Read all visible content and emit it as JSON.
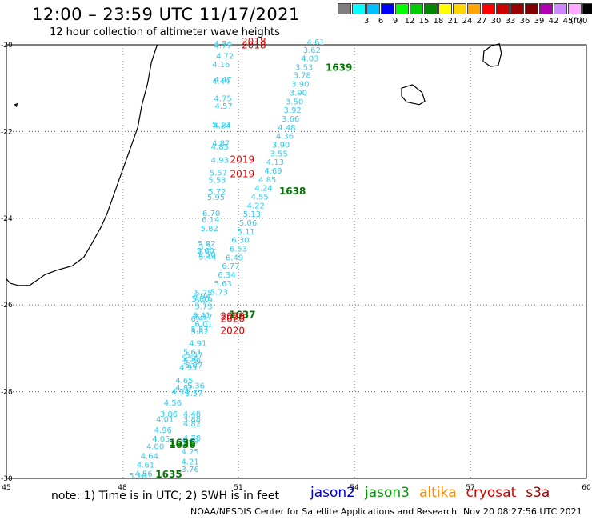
{
  "header": {
    "title": "12:00 – 23:59 UTC 11/17/2021",
    "subtitle": "12 hour collection of altimeter wave heights"
  },
  "color_scale": {
    "unit": "(ft)",
    "bins": [
      {
        "label": "",
        "color": "#7f7f7f"
      },
      {
        "label": "3",
        "color": "#00ffff"
      },
      {
        "label": "6",
        "color": "#00bfff"
      },
      {
        "label": "9",
        "color": "#0000ff"
      },
      {
        "label": "12",
        "color": "#00ff00"
      },
      {
        "label": "15",
        "color": "#00cc00"
      },
      {
        "label": "18",
        "color": "#008800"
      },
      {
        "label": "21",
        "color": "#ffff00"
      },
      {
        "label": "24",
        "color": "#ffd700"
      },
      {
        "label": "27",
        "color": "#ffa500"
      },
      {
        "label": "30",
        "color": "#ff0000"
      },
      {
        "label": "33",
        "color": "#cc0000"
      },
      {
        "label": "36",
        "color": "#990000"
      },
      {
        "label": "39",
        "color": "#800000"
      },
      {
        "label": "42",
        "color": "#b000b0"
      },
      {
        "label": "45",
        "color": "#cc88ff"
      },
      {
        "label": "70",
        "color": "#ffaaff"
      },
      {
        "label": "",
        "color": "#000000"
      }
    ]
  },
  "map": {
    "lon_range": [
      45,
      60
    ],
    "lat_range": [
      -30,
      -20
    ],
    "lon_ticks": [
      {
        "v": 45,
        "t": "45"
      },
      {
        "v": 48,
        "t": "48"
      },
      {
        "v": 51,
        "t": "51"
      },
      {
        "v": 54,
        "t": "54"
      },
      {
        "v": 57,
        "t": "57"
      },
      {
        "v": 60,
        "t": "60"
      }
    ],
    "lat_ticks": [
      {
        "v": -20,
        "t": "-20"
      },
      {
        "v": -22,
        "t": "-22"
      },
      {
        "v": -24,
        "t": "-24"
      },
      {
        "v": -26,
        "t": "-26"
      },
      {
        "v": -28,
        "t": "-28"
      },
      {
        "v": -30,
        "t": "-30"
      }
    ],
    "grid": true,
    "swh_color": "#33ccee",
    "pass_color_green": "#007700",
    "pass_color_red": "#dd0000",
    "coastline_madagascar": [
      [
        48.9,
        -20
      ],
      [
        48.75,
        -20.4
      ],
      [
        48.65,
        -20.9
      ],
      [
        48.5,
        -21.4
      ],
      [
        48.4,
        -21.9
      ],
      [
        48.2,
        -22.4
      ],
      [
        48.0,
        -22.9
      ],
      [
        47.8,
        -23.4
      ],
      [
        47.6,
        -23.9
      ],
      [
        47.45,
        -24.2
      ],
      [
        47.2,
        -24.6
      ],
      [
        47.0,
        -24.9
      ],
      [
        46.7,
        -25.1
      ],
      [
        46.3,
        -25.2
      ],
      [
        46.0,
        -25.3
      ],
      [
        45.6,
        -25.55
      ],
      [
        45.3,
        -25.55
      ],
      [
        45.1,
        -25.5
      ],
      [
        45.0,
        -25.4
      ]
    ],
    "reunion": [
      [
        55.22,
        -21.0
      ],
      [
        55.5,
        -20.92
      ],
      [
        55.75,
        -21.1
      ],
      [
        55.82,
        -21.3
      ],
      [
        55.68,
        -21.38
      ],
      [
        55.35,
        -21.32
      ],
      [
        55.22,
        -21.18
      ],
      [
        55.22,
        -21.0
      ]
    ],
    "mauritius": [
      [
        57.55,
        -20.02
      ],
      [
        57.75,
        -19.98
      ],
      [
        57.8,
        -20.2
      ],
      [
        57.72,
        -20.48
      ],
      [
        57.52,
        -20.5
      ],
      [
        57.33,
        -20.38
      ],
      [
        57.35,
        -20.15
      ],
      [
        57.55,
        -20.02
      ]
    ],
    "islet": [
      [
        45.22,
        -21.38
      ],
      [
        45.28,
        -21.36
      ],
      [
        45.26,
        -21.42
      ],
      [
        45.22,
        -21.38
      ]
    ]
  },
  "swh_readings": [
    {
      "lon": 50.6,
      "lat": -20.04,
      "v": "4.74"
    },
    {
      "lon": 50.6,
      "lat": -20.08,
      "v": "4.77"
    },
    {
      "lon": 50.65,
      "lat": -20.32,
      "v": "4.72"
    },
    {
      "lon": 50.55,
      "lat": -20.52,
      "v": "4.16"
    },
    {
      "lon": 50.6,
      "lat": -20.87,
      "v": "4.47"
    },
    {
      "lon": 50.55,
      "lat": -20.9,
      "v": "4.44"
    },
    {
      "lon": 50.6,
      "lat": -21.3,
      "v": "4.75"
    },
    {
      "lon": 50.62,
      "lat": -21.48,
      "v": "4.57"
    },
    {
      "lon": 50.55,
      "lat": -21.9,
      "v": "5.10"
    },
    {
      "lon": 50.58,
      "lat": -21.93,
      "v": "4.84"
    },
    {
      "lon": 50.55,
      "lat": -22.33,
      "v": "4.87"
    },
    {
      "lon": 50.52,
      "lat": -22.42,
      "v": "4.85"
    },
    {
      "lon": 50.52,
      "lat": -22.72,
      "v": "4.93"
    },
    {
      "lon": 50.48,
      "lat": -23.02,
      "v": "5.57"
    },
    {
      "lon": 50.45,
      "lat": -23.18,
      "v": "5.53"
    },
    {
      "lon": 50.45,
      "lat": -23.45,
      "v": "5.72"
    },
    {
      "lon": 50.42,
      "lat": -23.58,
      "v": "5.95"
    },
    {
      "lon": 50.3,
      "lat": -23.95,
      "v": "6.70"
    },
    {
      "lon": 50.28,
      "lat": -24.1,
      "v": "6.14"
    },
    {
      "lon": 50.25,
      "lat": -24.3,
      "v": "5.82"
    },
    {
      "lon": 50.18,
      "lat": -24.65,
      "v": "5.82"
    },
    {
      "lon": 50.2,
      "lat": -24.72,
      "v": "5.51"
    },
    {
      "lon": 50.15,
      "lat": -24.82,
      "v": "5.60"
    },
    {
      "lon": 50.18,
      "lat": -24.9,
      "v": "5.50"
    },
    {
      "lon": 50.2,
      "lat": -24.95,
      "v": "5.44"
    },
    {
      "lon": 50.1,
      "lat": -25.78,
      "v": "5.75"
    },
    {
      "lon": 50.05,
      "lat": -25.86,
      "v": "5.94"
    },
    {
      "lon": 50.02,
      "lat": -25.92,
      "v": "5.80"
    },
    {
      "lon": 50.1,
      "lat": -25.95,
      "v": "5.29"
    },
    {
      "lon": 50.1,
      "lat": -26.1,
      "v": "5.73"
    },
    {
      "lon": 50.05,
      "lat": -26.3,
      "v": "6.41"
    },
    {
      "lon": 50.1,
      "lat": -26.34,
      "v": "6.17"
    },
    {
      "lon": 50.0,
      "lat": -26.38,
      "v": "6.41"
    },
    {
      "lon": 50.1,
      "lat": -26.5,
      "v": "6.01"
    },
    {
      "lon": 50.0,
      "lat": -26.62,
      "v": "5.57"
    },
    {
      "lon": 50.0,
      "lat": -26.68,
      "v": "5.82"
    },
    {
      "lon": 49.95,
      "lat": -26.95,
      "v": "4.91"
    },
    {
      "lon": 49.8,
      "lat": -27.15,
      "v": "5.63"
    },
    {
      "lon": 49.85,
      "lat": -27.22,
      "v": "5.47"
    },
    {
      "lon": 49.75,
      "lat": -27.3,
      "v": "5.56"
    },
    {
      "lon": 49.8,
      "lat": -27.36,
      "v": "5.39"
    },
    {
      "lon": 49.85,
      "lat": -27.45,
      "v": "5.37"
    },
    {
      "lon": 49.7,
      "lat": -27.5,
      "v": "4.95"
    },
    {
      "lon": 49.6,
      "lat": -27.8,
      "v": "4.65"
    },
    {
      "lon": 49.9,
      "lat": -27.92,
      "v": "5.36"
    },
    {
      "lon": 49.6,
      "lat": -27.97,
      "v": "4.82"
    },
    {
      "lon": 49.5,
      "lat": -28.06,
      "v": "4.94"
    },
    {
      "lon": 49.85,
      "lat": -28.1,
      "v": "5.57"
    },
    {
      "lon": 49.3,
      "lat": -28.32,
      "v": "4.56"
    },
    {
      "lon": 49.2,
      "lat": -28.58,
      "v": "3.86"
    },
    {
      "lon": 49.8,
      "lat": -28.58,
      "v": "4.48"
    },
    {
      "lon": 49.8,
      "lat": -28.7,
      "v": "3.88"
    },
    {
      "lon": 49.1,
      "lat": -28.7,
      "v": "4.01"
    },
    {
      "lon": 49.8,
      "lat": -28.8,
      "v": "4.82"
    },
    {
      "lon": 49.05,
      "lat": -28.95,
      "v": "4.96"
    },
    {
      "lon": 49.0,
      "lat": -29.15,
      "v": "4.05"
    },
    {
      "lon": 49.8,
      "lat": -29.13,
      "v": "4.78"
    },
    {
      "lon": 49.75,
      "lat": -29.2,
      "v": "4.39"
    },
    {
      "lon": 48.85,
      "lat": -29.33,
      "v": "4.00"
    },
    {
      "lon": 49.75,
      "lat": -29.45,
      "v": "4.25"
    },
    {
      "lon": 48.7,
      "lat": -29.55,
      "v": "4.64"
    },
    {
      "lon": 49.75,
      "lat": -29.68,
      "v": "4.21"
    },
    {
      "lon": 48.6,
      "lat": -29.75,
      "v": "4.61"
    },
    {
      "lon": 49.75,
      "lat": -29.85,
      "v": "3.76"
    },
    {
      "lon": 48.55,
      "lat": -29.95,
      "v": "4.56"
    },
    {
      "lon": 48.4,
      "lat": -30.0,
      "v": "5.18"
    },
    {
      "lon": 53.0,
      "lat": -20.0,
      "v": "4.61"
    },
    {
      "lon": 52.9,
      "lat": -20.18,
      "v": "3.62"
    },
    {
      "lon": 52.85,
      "lat": -20.38,
      "v": "4.03"
    },
    {
      "lon": 52.7,
      "lat": -20.58,
      "v": "3.53"
    },
    {
      "lon": 52.65,
      "lat": -20.77,
      "v": "3.78"
    },
    {
      "lon": 52.6,
      "lat": -20.97,
      "v": "3.90"
    },
    {
      "lon": 52.55,
      "lat": -21.17,
      "v": "3.90"
    },
    {
      "lon": 52.45,
      "lat": -21.37,
      "v": "3.50"
    },
    {
      "lon": 52.4,
      "lat": -21.57,
      "v": "3.92"
    },
    {
      "lon": 52.35,
      "lat": -21.77,
      "v": "3.66"
    },
    {
      "lon": 52.25,
      "lat": -21.97,
      "v": "4.48"
    },
    {
      "lon": 52.2,
      "lat": -22.17,
      "v": "4.36"
    },
    {
      "lon": 52.1,
      "lat": -22.37,
      "v": "3.90"
    },
    {
      "lon": 52.05,
      "lat": -22.57,
      "v": "3.55"
    },
    {
      "lon": 51.95,
      "lat": -22.77,
      "v": "4.13"
    },
    {
      "lon": 51.9,
      "lat": -22.97,
      "v": "4.69"
    },
    {
      "lon": 51.75,
      "lat": -23.17,
      "v": "4.85"
    },
    {
      "lon": 51.65,
      "lat": -23.37,
      "v": "4.24"
    },
    {
      "lon": 51.55,
      "lat": -23.57,
      "v": "4.55"
    },
    {
      "lon": 51.45,
      "lat": -23.77,
      "v": "4.22"
    },
    {
      "lon": 51.35,
      "lat": -23.97,
      "v": "5.13"
    },
    {
      "lon": 51.25,
      "lat": -24.17,
      "v": "5.06"
    },
    {
      "lon": 51.2,
      "lat": -24.37,
      "v": "5.11"
    },
    {
      "lon": 51.05,
      "lat": -24.57,
      "v": "6.30"
    },
    {
      "lon": 51.0,
      "lat": -24.77,
      "v": "6.53"
    },
    {
      "lon": 50.9,
      "lat": -24.97,
      "v": "6.49"
    },
    {
      "lon": 50.8,
      "lat": -25.17,
      "v": "6.77"
    },
    {
      "lon": 50.7,
      "lat": -25.37,
      "v": "6.34"
    },
    {
      "lon": 50.6,
      "lat": -25.57,
      "v": "5.63"
    },
    {
      "lon": 50.5,
      "lat": -25.77,
      "v": "5.73"
    }
  ],
  "pass_labels": [
    {
      "lon": 51.4,
      "lat": -20.0,
      "v": "2018",
      "c": "red"
    },
    {
      "lon": 51.4,
      "lat": -20.08,
      "v": "2018",
      "c": "red"
    },
    {
      "lon": 53.6,
      "lat": -20.6,
      "v": "1639",
      "c": "green"
    },
    {
      "lon": 51.1,
      "lat": -22.72,
      "v": "2019",
      "c": "red"
    },
    {
      "lon": 51.1,
      "lat": -23.05,
      "v": "2019",
      "c": "red"
    },
    {
      "lon": 52.4,
      "lat": -23.45,
      "v": "1638",
      "c": "green"
    },
    {
      "lon": 51.1,
      "lat": -26.3,
      "v": "1637",
      "c": "green"
    },
    {
      "lon": 50.85,
      "lat": -26.34,
      "v": "2020",
      "c": "red"
    },
    {
      "lon": 50.85,
      "lat": -26.39,
      "v": "2020",
      "c": "red"
    },
    {
      "lon": 50.85,
      "lat": -26.67,
      "v": "2020",
      "c": "red"
    },
    {
      "lon": 49.55,
      "lat": -29.25,
      "v": "1636",
      "c": "green"
    },
    {
      "lon": 49.55,
      "lat": -29.3,
      "v": "1636",
      "c": "green"
    },
    {
      "lon": 49.2,
      "lat": -29.98,
      "v": "1635",
      "c": "green"
    }
  ],
  "footer": {
    "note": "note: 1) Time is in UTC; 2) SWH is in feet",
    "satellites": [
      {
        "name": "jason2",
        "color": "#0000cc"
      },
      {
        "name": "jason3",
        "color": "#009900"
      },
      {
        "name": "altika",
        "color": "#ff8800"
      },
      {
        "name": "cryosat",
        "color": "#dd0000"
      },
      {
        "name": "s3a",
        "color": "#aa0000"
      }
    ],
    "credit": "NOAA/NESDIS Center for Satellite Applications and Research",
    "timestamp": "Nov 20 08:27:56 UTC 2021"
  }
}
